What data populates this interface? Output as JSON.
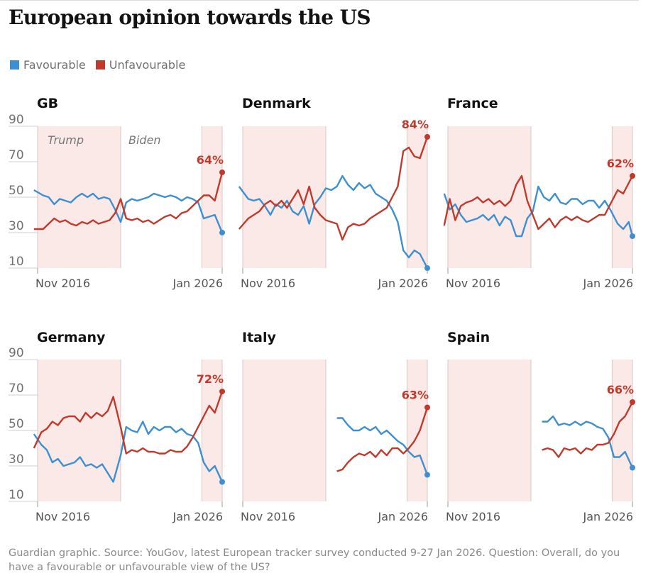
{
  "title": "European opinion towards the US",
  "legend": [
    {
      "label": "Favourable",
      "color": "#3d8fd1"
    },
    {
      "label": "Unfavourable",
      "color": "#c0392b"
    }
  ],
  "source": "Guardian graphic. Source: YouGov, latest European tracker survey conducted 9-27 Jan 2026. Question: Overall, do you have a favourable or unfavourable view of the US?",
  "colors": {
    "favourable": "#3d8fd1",
    "unfavourable": "#c0392b",
    "shade": "#fbe9e7"
  },
  "eras": [
    "Trump",
    "Biden"
  ],
  "chart_data": [
    {
      "type": "line",
      "title": "GB",
      "x_start": "Nov 2016",
      "x_end": "Jan 2026",
      "yticks": [
        10,
        30,
        50,
        70,
        90
      ],
      "ylim": [
        10,
        90
      ],
      "shaded_periods": [
        [
          0,
          0.45
        ],
        [
          0.89,
          1
        ]
      ],
      "end_label": "64%",
      "series": [
        {
          "name": "Favourable",
          "x": [
            -0.02,
            0.03,
            0.06,
            0.09,
            0.12,
            0.15,
            0.18,
            0.21,
            0.24,
            0.27,
            0.3,
            0.33,
            0.36,
            0.39,
            0.42,
            0.45,
            0.48,
            0.51,
            0.54,
            0.57,
            0.6,
            0.63,
            0.66,
            0.69,
            0.72,
            0.75,
            0.78,
            0.81,
            0.84,
            0.87,
            0.9,
            0.93,
            0.96,
            1.0
          ],
          "values": [
            54,
            51,
            50,
            46,
            49,
            48,
            47,
            50,
            52,
            50,
            52,
            49,
            50,
            49,
            43,
            36,
            47,
            49,
            48,
            49,
            50,
            52,
            51,
            50,
            51,
            50,
            48,
            50,
            49,
            47,
            38,
            39,
            40,
            30
          ]
        },
        {
          "name": "Unfavourable",
          "x": [
            -0.02,
            0.03,
            0.06,
            0.09,
            0.12,
            0.15,
            0.18,
            0.21,
            0.24,
            0.27,
            0.3,
            0.33,
            0.36,
            0.39,
            0.42,
            0.45,
            0.48,
            0.51,
            0.54,
            0.57,
            0.6,
            0.63,
            0.66,
            0.69,
            0.72,
            0.75,
            0.78,
            0.81,
            0.84,
            0.87,
            0.9,
            0.93,
            0.96,
            1.0
          ],
          "values": [
            32,
            32,
            35,
            38,
            36,
            37,
            35,
            34,
            36,
            35,
            37,
            35,
            36,
            37,
            41,
            49,
            38,
            37,
            38,
            36,
            37,
            35,
            37,
            39,
            40,
            38,
            41,
            42,
            45,
            48,
            51,
            51,
            48,
            64
          ]
        }
      ]
    },
    {
      "type": "line",
      "title": "Denmark",
      "x_start": "Nov 2016",
      "x_end": "Jan 2026",
      "yticks": [
        10,
        30,
        50,
        70,
        90
      ],
      "ylim": [
        10,
        90
      ],
      "shaded_periods": [
        [
          0,
          0.45
        ],
        [
          0.89,
          1
        ]
      ],
      "end_label": "84%",
      "series": [
        {
          "name": "Favourable",
          "x": [
            -0.02,
            0.03,
            0.06,
            0.09,
            0.12,
            0.15,
            0.18,
            0.21,
            0.24,
            0.27,
            0.3,
            0.33,
            0.36,
            0.39,
            0.42,
            0.45,
            0.48,
            0.51,
            0.54,
            0.57,
            0.6,
            0.63,
            0.66,
            0.69,
            0.72,
            0.75,
            0.78,
            0.81,
            0.84,
            0.87,
            0.9,
            0.93,
            0.96,
            1.0
          ],
          "values": [
            56,
            49,
            48,
            49,
            45,
            40,
            46,
            44,
            48,
            42,
            40,
            45,
            35,
            46,
            50,
            55,
            54,
            56,
            62,
            57,
            54,
            58,
            55,
            57,
            52,
            50,
            48,
            43,
            36,
            20,
            16,
            20,
            18,
            10
          ]
        },
        {
          "name": "Unfavourable",
          "x": [
            -0.02,
            0.03,
            0.06,
            0.09,
            0.12,
            0.15,
            0.18,
            0.21,
            0.24,
            0.27,
            0.3,
            0.33,
            0.36,
            0.39,
            0.42,
            0.45,
            0.48,
            0.51,
            0.54,
            0.57,
            0.6,
            0.63,
            0.66,
            0.69,
            0.72,
            0.75,
            0.78,
            0.81,
            0.84,
            0.87,
            0.9,
            0.93,
            0.96,
            1.0
          ],
          "values": [
            32,
            38,
            40,
            42,
            46,
            48,
            45,
            48,
            44,
            49,
            54,
            46,
            56,
            44,
            40,
            37,
            36,
            35,
            26,
            33,
            35,
            34,
            35,
            38,
            40,
            42,
            44,
            50,
            56,
            76,
            78,
            73,
            72,
            84
          ]
        }
      ]
    },
    {
      "type": "line",
      "title": "France",
      "x_start": "Nov 2016",
      "x_end": "Jan 2026",
      "yticks": [
        10,
        30,
        50,
        70,
        90
      ],
      "ylim": [
        10,
        90
      ],
      "shaded_periods": [
        [
          0,
          0.45
        ],
        [
          0.89,
          1
        ]
      ],
      "end_label": "62%",
      "series": [
        {
          "name": "Favourable",
          "x": [
            -0.02,
            0.01,
            0.04,
            0.07,
            0.1,
            0.13,
            0.16,
            0.19,
            0.22,
            0.25,
            0.28,
            0.31,
            0.34,
            0.37,
            0.4,
            0.43,
            0.46,
            0.49,
            0.52,
            0.55,
            0.58,
            0.61,
            0.64,
            0.67,
            0.7,
            0.73,
            0.76,
            0.79,
            0.82,
            0.85,
            0.88,
            0.92,
            0.95,
            0.98,
            1.0
          ],
          "values": [
            52,
            43,
            46,
            40,
            36,
            37,
            38,
            40,
            37,
            40,
            34,
            39,
            37,
            28,
            28,
            38,
            42,
            56,
            50,
            48,
            52,
            47,
            46,
            49,
            49,
            46,
            48,
            48,
            44,
            48,
            43,
            35,
            32,
            36,
            28
          ]
        },
        {
          "name": "Unfavourable",
          "x": [
            -0.02,
            0.01,
            0.04,
            0.07,
            0.1,
            0.13,
            0.16,
            0.19,
            0.22,
            0.25,
            0.28,
            0.31,
            0.34,
            0.37,
            0.4,
            0.43,
            0.46,
            0.49,
            0.52,
            0.55,
            0.58,
            0.61,
            0.64,
            0.67,
            0.7,
            0.73,
            0.76,
            0.79,
            0.82,
            0.85,
            0.88,
            0.92,
            0.95,
            0.98,
            1.0
          ],
          "values": [
            34,
            49,
            37,
            45,
            47,
            48,
            50,
            47,
            49,
            46,
            48,
            45,
            48,
            57,
            62,
            48,
            40,
            32,
            35,
            38,
            33,
            37,
            39,
            37,
            39,
            37,
            36,
            38,
            40,
            40,
            46,
            54,
            52,
            58,
            62
          ]
        }
      ]
    },
    {
      "type": "line",
      "title": "Germany",
      "x_start": "Nov 2016",
      "x_end": "Jan 2026",
      "yticks": [
        10,
        30,
        50,
        70,
        90
      ],
      "ylim": [
        10,
        90
      ],
      "shaded_periods": [
        [
          0,
          0.45
        ],
        [
          0.89,
          1
        ]
      ],
      "end_label": "72%",
      "series": [
        {
          "name": "Favourable",
          "x": [
            -0.02,
            0.02,
            0.05,
            0.08,
            0.11,
            0.14,
            0.17,
            0.2,
            0.23,
            0.26,
            0.29,
            0.32,
            0.35,
            0.38,
            0.41,
            0.45,
            0.48,
            0.51,
            0.54,
            0.57,
            0.6,
            0.63,
            0.66,
            0.69,
            0.72,
            0.75,
            0.78,
            0.81,
            0.84,
            0.87,
            0.9,
            0.93,
            0.96,
            1.0
          ],
          "values": [
            48,
            42,
            39,
            32,
            34,
            30,
            31,
            32,
            35,
            30,
            31,
            29,
            31,
            26,
            21,
            36,
            52,
            50,
            49,
            55,
            48,
            52,
            50,
            52,
            52,
            49,
            51,
            48,
            47,
            43,
            32,
            27,
            30,
            21
          ]
        },
        {
          "name": "Unfavourable",
          "x": [
            -0.02,
            0.02,
            0.05,
            0.08,
            0.11,
            0.14,
            0.17,
            0.2,
            0.23,
            0.26,
            0.29,
            0.32,
            0.35,
            0.38,
            0.41,
            0.45,
            0.48,
            0.51,
            0.54,
            0.57,
            0.6,
            0.63,
            0.66,
            0.69,
            0.72,
            0.75,
            0.78,
            0.81,
            0.84,
            0.87,
            0.9,
            0.93,
            0.96,
            1.0
          ],
          "values": [
            40,
            49,
            51,
            55,
            53,
            57,
            58,
            58,
            55,
            60,
            57,
            60,
            58,
            61,
            69,
            52,
            37,
            39,
            38,
            40,
            38,
            38,
            37,
            37,
            39,
            38,
            38,
            41,
            46,
            52,
            58,
            64,
            60,
            72
          ]
        }
      ]
    },
    {
      "type": "line",
      "title": "Italy",
      "x_start": "Nov 2016",
      "x_end": "Jan 2026",
      "yticks": [
        10,
        30,
        50,
        70,
        90
      ],
      "ylim": [
        10,
        90
      ],
      "shaded_periods": [
        [
          0,
          0.45
        ],
        [
          0.89,
          1
        ]
      ],
      "end_label": "63%",
      "series": [
        {
          "name": "Favourable",
          "x": [
            0.51,
            0.54,
            0.57,
            0.6,
            0.63,
            0.66,
            0.69,
            0.72,
            0.75,
            0.78,
            0.81,
            0.84,
            0.87,
            0.9,
            0.93,
            0.96,
            1.0
          ],
          "values": [
            57,
            57,
            53,
            50,
            50,
            52,
            50,
            52,
            48,
            50,
            47,
            44,
            42,
            38,
            35,
            36,
            25
          ]
        },
        {
          "name": "Unfavourable",
          "x": [
            0.51,
            0.54,
            0.57,
            0.6,
            0.63,
            0.66,
            0.69,
            0.72,
            0.75,
            0.78,
            0.81,
            0.84,
            0.87,
            0.9,
            0.93,
            0.96,
            1.0
          ],
          "values": [
            27,
            28,
            32,
            35,
            37,
            36,
            38,
            35,
            39,
            36,
            40,
            40,
            37,
            40,
            44,
            50,
            63
          ]
        }
      ]
    },
    {
      "type": "line",
      "title": "Spain",
      "x_start": "Nov 2016",
      "x_end": "Jan 2026",
      "yticks": [
        10,
        30,
        50,
        70,
        90
      ],
      "ylim": [
        10,
        90
      ],
      "shaded_periods": [
        [
          0,
          0.45
        ],
        [
          0.89,
          1
        ]
      ],
      "end_label": "66%",
      "series": [
        {
          "name": "Favourable",
          "x": [
            0.51,
            0.54,
            0.57,
            0.6,
            0.63,
            0.66,
            0.69,
            0.72,
            0.75,
            0.78,
            0.81,
            0.84,
            0.87,
            0.9,
            0.93,
            0.96,
            1.0
          ],
          "values": [
            55,
            55,
            58,
            53,
            54,
            53,
            55,
            53,
            55,
            54,
            52,
            51,
            46,
            35,
            35,
            38,
            29
          ]
        },
        {
          "name": "Unfavourable",
          "x": [
            0.51,
            0.54,
            0.57,
            0.6,
            0.63,
            0.66,
            0.69,
            0.72,
            0.75,
            0.78,
            0.81,
            0.84,
            0.87,
            0.9,
            0.93,
            0.96,
            1.0
          ],
          "values": [
            39,
            40,
            39,
            35,
            40,
            39,
            40,
            37,
            40,
            39,
            42,
            42,
            43,
            48,
            55,
            58,
            66
          ]
        }
      ]
    }
  ]
}
